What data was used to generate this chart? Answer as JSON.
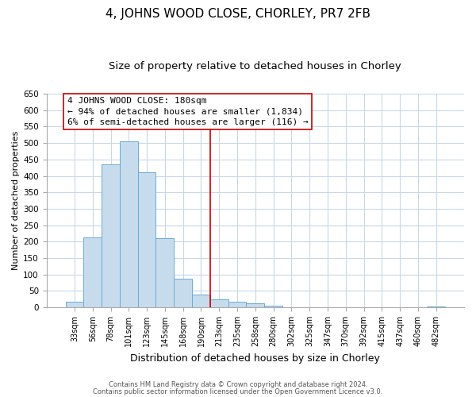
{
  "title": "4, JOHNS WOOD CLOSE, CHORLEY, PR7 2FB",
  "subtitle": "Size of property relative to detached houses in Chorley",
  "xlabel": "Distribution of detached houses by size in Chorley",
  "ylabel": "Number of detached properties",
  "bin_labels": [
    "33sqm",
    "56sqm",
    "78sqm",
    "101sqm",
    "123sqm",
    "145sqm",
    "168sqm",
    "190sqm",
    "213sqm",
    "235sqm",
    "258sqm",
    "280sqm",
    "302sqm",
    "325sqm",
    "347sqm",
    "370sqm",
    "392sqm",
    "415sqm",
    "437sqm",
    "460sqm",
    "482sqm"
  ],
  "bar_heights": [
    18,
    212,
    435,
    505,
    410,
    210,
    87,
    40,
    25,
    18,
    13,
    5,
    0,
    0,
    0,
    0,
    0,
    0,
    0,
    0,
    3
  ],
  "bar_color": "#c6dcec",
  "bar_edge_color": "#6aaad4",
  "vline_x": 7.5,
  "vline_color": "#cc0000",
  "annotation_title": "4 JOHNS WOOD CLOSE: 180sqm",
  "annotation_line1": "← 94% of detached houses are smaller (1,834)",
  "annotation_line2": "6% of semi-detached houses are larger (116) →",
  "annotation_box_color": "#ffffff",
  "annotation_border_color": "#cc0000",
  "ylim": [
    0,
    650
  ],
  "yticks": [
    0,
    50,
    100,
    150,
    200,
    250,
    300,
    350,
    400,
    450,
    500,
    550,
    600,
    650
  ],
  "footnote1": "Contains HM Land Registry data © Crown copyright and database right 2024.",
  "footnote2": "Contains public sector information licensed under the Open Government Licence v3.0.",
  "background_color": "#ffffff",
  "grid_color": "#c8d8e8",
  "title_fontsize": 11,
  "subtitle_fontsize": 9.5,
  "xlabel_fontsize": 9,
  "ylabel_fontsize": 8,
  "tick_fontsize": 7,
  "annotation_fontsize": 8,
  "footnote_fontsize": 6
}
